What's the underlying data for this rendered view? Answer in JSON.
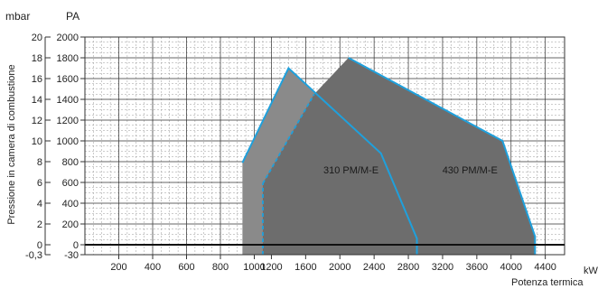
{
  "chart_data": {
    "type": "area",
    "title": "",
    "xlabel": "Potenza termica",
    "xunit": "kW",
    "ylabel": "Pressione in camera di combustione",
    "yunit_left": "mbar",
    "yunit_right": "PA",
    "xlim": [
      0,
      4400
    ],
    "ylim_pa": [
      -30,
      2000
    ],
    "x_ticks": [
      200,
      400,
      600,
      800,
      1000,
      1200,
      1600,
      2000,
      2400,
      2800,
      3200,
      3600,
      4000,
      4400
    ],
    "x_tick_labels": [
      "200",
      "400",
      "600",
      "800",
      "1000",
      "1200",
      "1600",
      "2000",
      "2400",
      "2800",
      "3200",
      "3600",
      "4000",
      "4400"
    ],
    "y_ticks_pa": [
      -30,
      0,
      200,
      400,
      600,
      800,
      1000,
      1200,
      1400,
      1600,
      1800,
      2000
    ],
    "y_tick_labels_pa": [
      "-30",
      "0",
      "200",
      "400",
      "600",
      "800",
      "1000",
      "1200",
      "1400",
      "1600",
      "1800",
      "2000"
    ],
    "y_tick_labels_mbar": [
      "-0,3",
      "0",
      "2",
      "4",
      "6",
      "8",
      "10",
      "12",
      "14",
      "16",
      "18",
      "20"
    ],
    "grid": true,
    "series": [
      {
        "name": "310 PM/M-E",
        "color": "#8a8a8a",
        "border": "#1fa0dc",
        "polygon": [
          [
            930,
            -30
          ],
          [
            930,
            790
          ],
          [
            1400,
            1700
          ],
          [
            2480,
            880
          ],
          [
            2900,
            60
          ],
          [
            2900,
            -30
          ]
        ],
        "blue_edge_from_index": 2,
        "label_at": [
          2130,
          720
        ]
      },
      {
        "name": "430 PM/M-E",
        "color": "#6d6d6d",
        "border": "#1fa0dc",
        "polygon": [
          [
            1100,
            -30
          ],
          [
            1100,
            590
          ],
          [
            1700,
            1450
          ],
          [
            2100,
            1800
          ],
          [
            3900,
            1000
          ],
          [
            4280,
            80
          ],
          [
            4280,
            -30
          ]
        ],
        "dashed_edge_indices": [
          [
            0,
            1
          ],
          [
            1,
            2
          ]
        ],
        "blue_edge_from_index": 3,
        "label_at": [
          3520,
          720
        ]
      }
    ]
  }
}
